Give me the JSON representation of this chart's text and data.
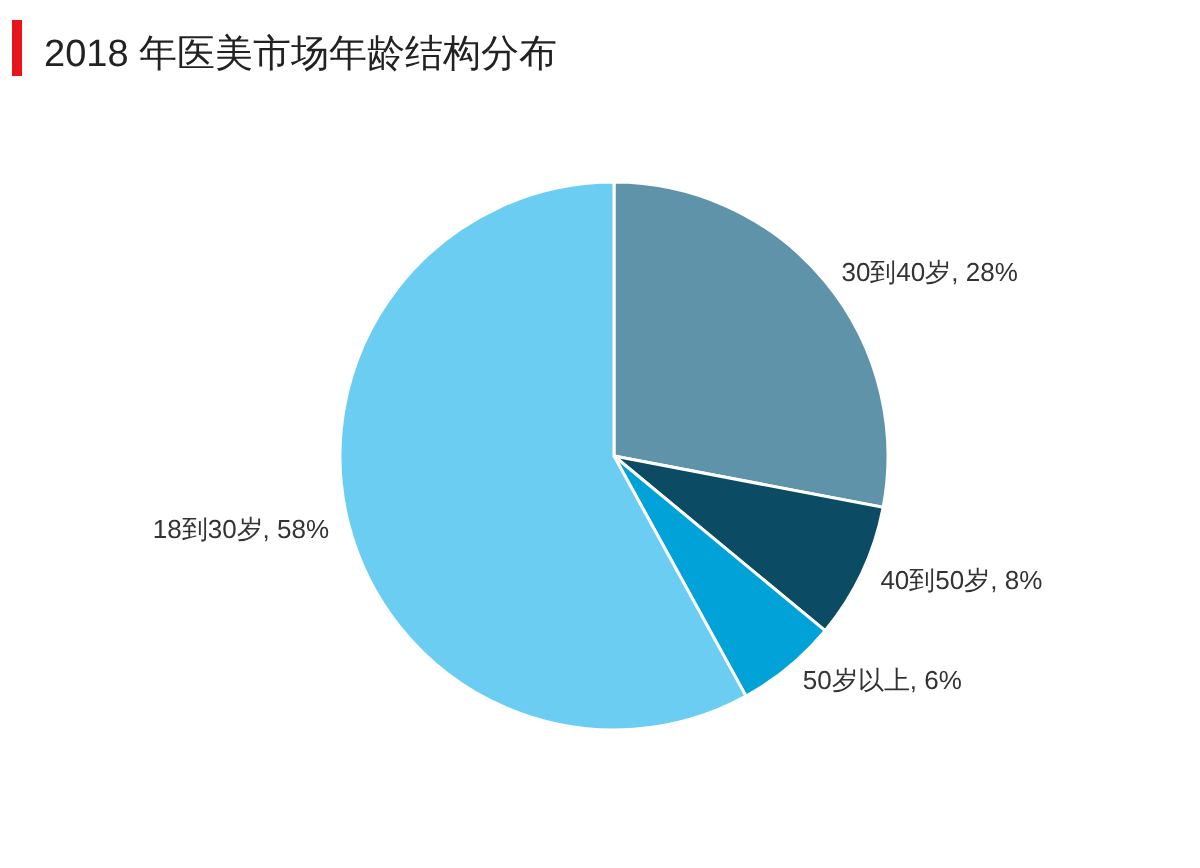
{
  "chart_data": {
    "type": "pie",
    "title": "2018 年医美市场年龄结构分布",
    "categories": [
      "30到40岁",
      "40到50岁",
      "50岁以上",
      "18到30岁"
    ],
    "values": [
      28,
      8,
      6,
      58
    ],
    "colors": [
      "#5f93aa",
      "#0b4c64",
      "#00a2d8",
      "#6bcdf2"
    ],
    "value_labels": [
      ", 28%",
      ", 8%",
      ", 6%",
      ", 58%"
    ]
  }
}
